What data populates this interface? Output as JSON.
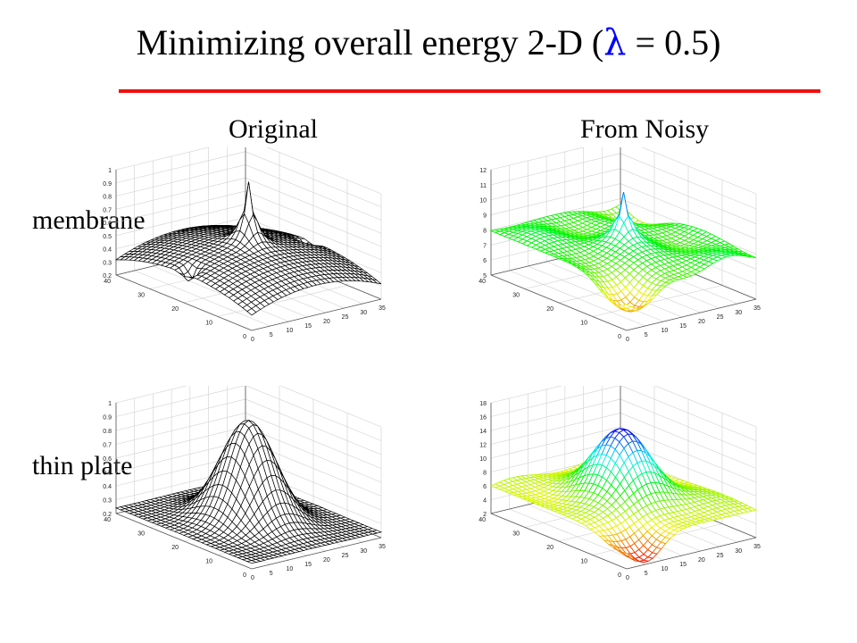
{
  "slide": {
    "title_prefix": "Minimizing overall energy 2-D (",
    "title_lambda": "λ",
    "title_suffix": " = 0.5)",
    "col_labels": [
      "Original",
      "From Noisy"
    ],
    "row_labels": [
      "membrane",
      "thin plate"
    ]
  },
  "colors": {
    "rule": "#ee1111",
    "lambda": "#0000ff",
    "mesh_black": "#000000"
  },
  "chart_data": [
    {
      "type": "surface",
      "id": "membrane-original",
      "colormap": "black-wireframe",
      "x_ticks": [
        0,
        5,
        10,
        15,
        20,
        25,
        30,
        35
      ],
      "y_ticks": [
        0,
        10,
        20,
        30,
        40
      ],
      "z_ticks": [
        "0.2",
        "0.3",
        "0.4",
        "0.5",
        "0.6",
        "0.7",
        "0.8",
        "0.9",
        "1"
      ],
      "xlim": [
        0,
        35
      ],
      "ylim": [
        0,
        40
      ],
      "zlim": [
        0.2,
        1
      ],
      "grid": true
    },
    {
      "type": "surface",
      "id": "membrane-noisy",
      "colormap": "hsv",
      "x_ticks": [
        0,
        5,
        10,
        15,
        20,
        25,
        30,
        35
      ],
      "y_ticks": [
        0,
        10,
        20,
        30,
        40
      ],
      "z_ticks": [
        "5",
        "6",
        "7",
        "8",
        "9",
        "10",
        "11",
        "12"
      ],
      "xlim": [
        0,
        35
      ],
      "ylim": [
        0,
        40
      ],
      "zlim": [
        5,
        12
      ],
      "grid": true
    },
    {
      "type": "surface",
      "id": "thinplate-original",
      "colormap": "black-wireframe",
      "x_ticks": [
        0,
        5,
        10,
        15,
        20,
        25,
        30,
        35
      ],
      "y_ticks": [
        0,
        10,
        20,
        30,
        40
      ],
      "z_ticks": [
        "0.2",
        "0.3",
        "0.4",
        "0.5",
        "0.6",
        "0.7",
        "0.8",
        "0.9",
        "1"
      ],
      "xlim": [
        0,
        35
      ],
      "ylim": [
        0,
        40
      ],
      "zlim": [
        0.2,
        1
      ],
      "grid": true
    },
    {
      "type": "surface",
      "id": "thinplate-noisy",
      "colormap": "hsv",
      "x_ticks": [
        0,
        5,
        10,
        15,
        20,
        25,
        30,
        35
      ],
      "y_ticks": [
        0,
        10,
        20,
        30,
        40
      ],
      "z_ticks": [
        "2",
        "4",
        "6",
        "8",
        "10",
        "12",
        "14",
        "16",
        "18"
      ],
      "xlim": [
        0,
        35
      ],
      "ylim": [
        0,
        40
      ],
      "zlim": [
        2,
        18
      ],
      "grid": true
    }
  ]
}
